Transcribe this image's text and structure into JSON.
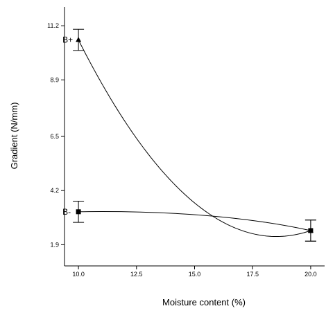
{
  "chart_data": {
    "type": "line",
    "xlabel": "Moisture content (%)",
    "ylabel": "Gradient (N/mm)",
    "xlim": [
      9.4,
      20.6
    ],
    "ylim": [
      1.0,
      12.0
    ],
    "x_ticks": [
      10.0,
      12.5,
      15.0,
      17.5,
      20.0
    ],
    "x_tick_labels": [
      "10.0",
      "12.5",
      "15.0",
      "17.5",
      "20.0"
    ],
    "y_ticks": [
      1.9,
      4.2,
      6.5,
      8.9,
      11.2
    ],
    "y_tick_labels": [
      "1.9",
      "4.2",
      "6.5",
      "8.9",
      "11.2"
    ],
    "series": [
      {
        "name": "B+",
        "marker": "triangle",
        "points": [
          {
            "x": 10.0,
            "y": 10.6,
            "err": 0.45
          },
          {
            "x": 20.0,
            "y": 2.5,
            "err": 0.45
          }
        ],
        "curve_min": {
          "x": 18.6,
          "y": 2.25
        }
      },
      {
        "name": "B-",
        "marker": "square",
        "points": [
          {
            "x": 10.0,
            "y": 3.3,
            "err": 0.45
          },
          {
            "x": 20.0,
            "y": 2.5,
            "err": 0.45
          }
        ]
      }
    ],
    "grid": false,
    "legend": "none"
  }
}
